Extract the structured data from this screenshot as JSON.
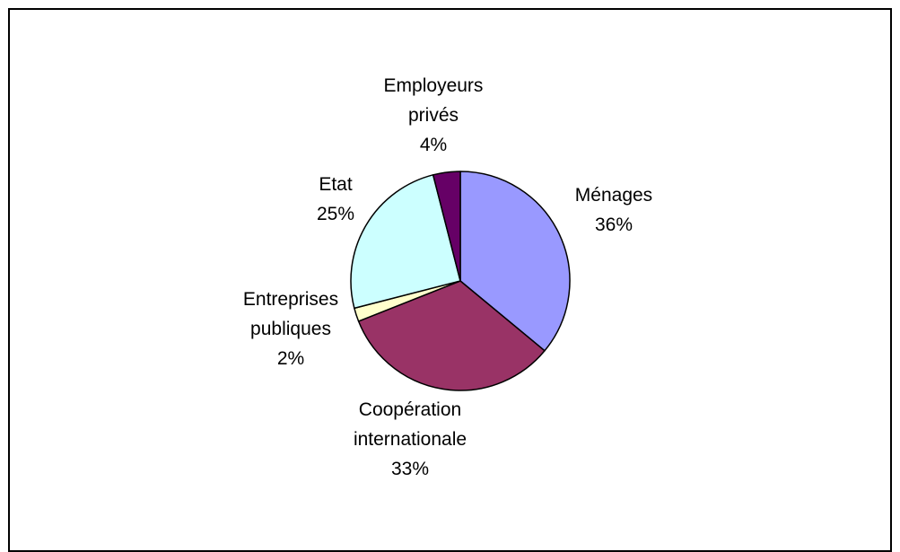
{
  "chart_data": {
    "type": "pie",
    "title": "",
    "slices": [
      {
        "name_lines": [
          "Ménages"
        ],
        "value": 36,
        "label_pct": "36%",
        "color": "#9999ff"
      },
      {
        "name_lines": [
          "Coopération",
          "internationale"
        ],
        "value": 33,
        "label_pct": "33%",
        "color": "#993366"
      },
      {
        "name_lines": [
          "Entreprises",
          "publiques"
        ],
        "value": 2,
        "label_pct": "2%",
        "color": "#ffffcc"
      },
      {
        "name_lines": [
          "Etat"
        ],
        "value": 25,
        "label_pct": "25%",
        "color": "#ccffff"
      },
      {
        "name_lines": [
          "Employeurs",
          "privés"
        ],
        "value": 4,
        "label_pct": "4%",
        "color": "#660066"
      }
    ],
    "start_angle_deg": 0,
    "direction": "clockwise",
    "legend": "none"
  }
}
